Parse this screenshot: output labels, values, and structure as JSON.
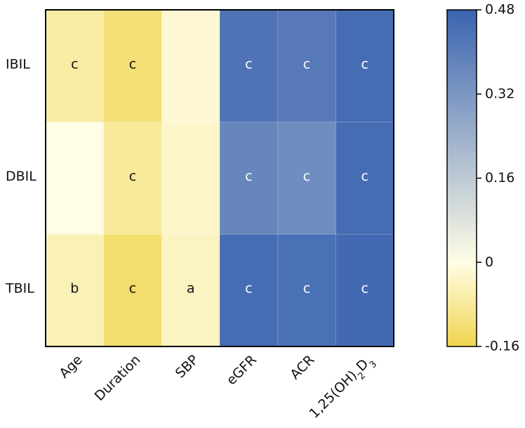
{
  "chart_data": {
    "type": "heatmap",
    "title": "",
    "xlabel": "",
    "ylabel": "",
    "rows": [
      "IBIL",
      "DBIL",
      "TBIL"
    ],
    "columns": [
      {
        "pre": "Age",
        "sub": "",
        "mid": "",
        "sub2": ""
      },
      {
        "pre": "Duration",
        "sub": "",
        "mid": "",
        "sub2": ""
      },
      {
        "pre": "SBP",
        "sub": "",
        "mid": "",
        "sub2": ""
      },
      {
        "pre": "eGFR",
        "sub": "",
        "mid": "",
        "sub2": ""
      },
      {
        "pre": "ACR",
        "sub": "",
        "mid": "",
        "sub2": ""
      },
      {
        "pre": "1,25(OH)",
        "sub": "2",
        "mid": "D",
        "sub2": "3"
      }
    ],
    "values": [
      [
        -0.07,
        -0.12,
        -0.02,
        0.43,
        0.41,
        0.45
      ],
      [
        0.0,
        -0.08,
        -0.03,
        0.37,
        0.35,
        0.45
      ],
      [
        -0.05,
        -0.13,
        -0.04,
        0.45,
        0.44,
        0.46
      ]
    ],
    "significance": [
      [
        "c",
        "c",
        "",
        "c",
        "c",
        "c"
      ],
      [
        "",
        "c",
        "",
        "c",
        "c",
        "c"
      ],
      [
        "b",
        "c",
        "a",
        "c",
        "c",
        "c"
      ]
    ],
    "colorbar": {
      "min": -0.16,
      "max": 0.48,
      "ticks": [
        0.48,
        0.32,
        0.16,
        0,
        -0.16
      ],
      "tick_labels": [
        "0.48",
        "0.32",
        "0.16",
        "0",
        "-0.16"
      ],
      "low_color": "#f0d550",
      "mid_color": "#fffde6",
      "high_color": "#3a63b0"
    }
  }
}
